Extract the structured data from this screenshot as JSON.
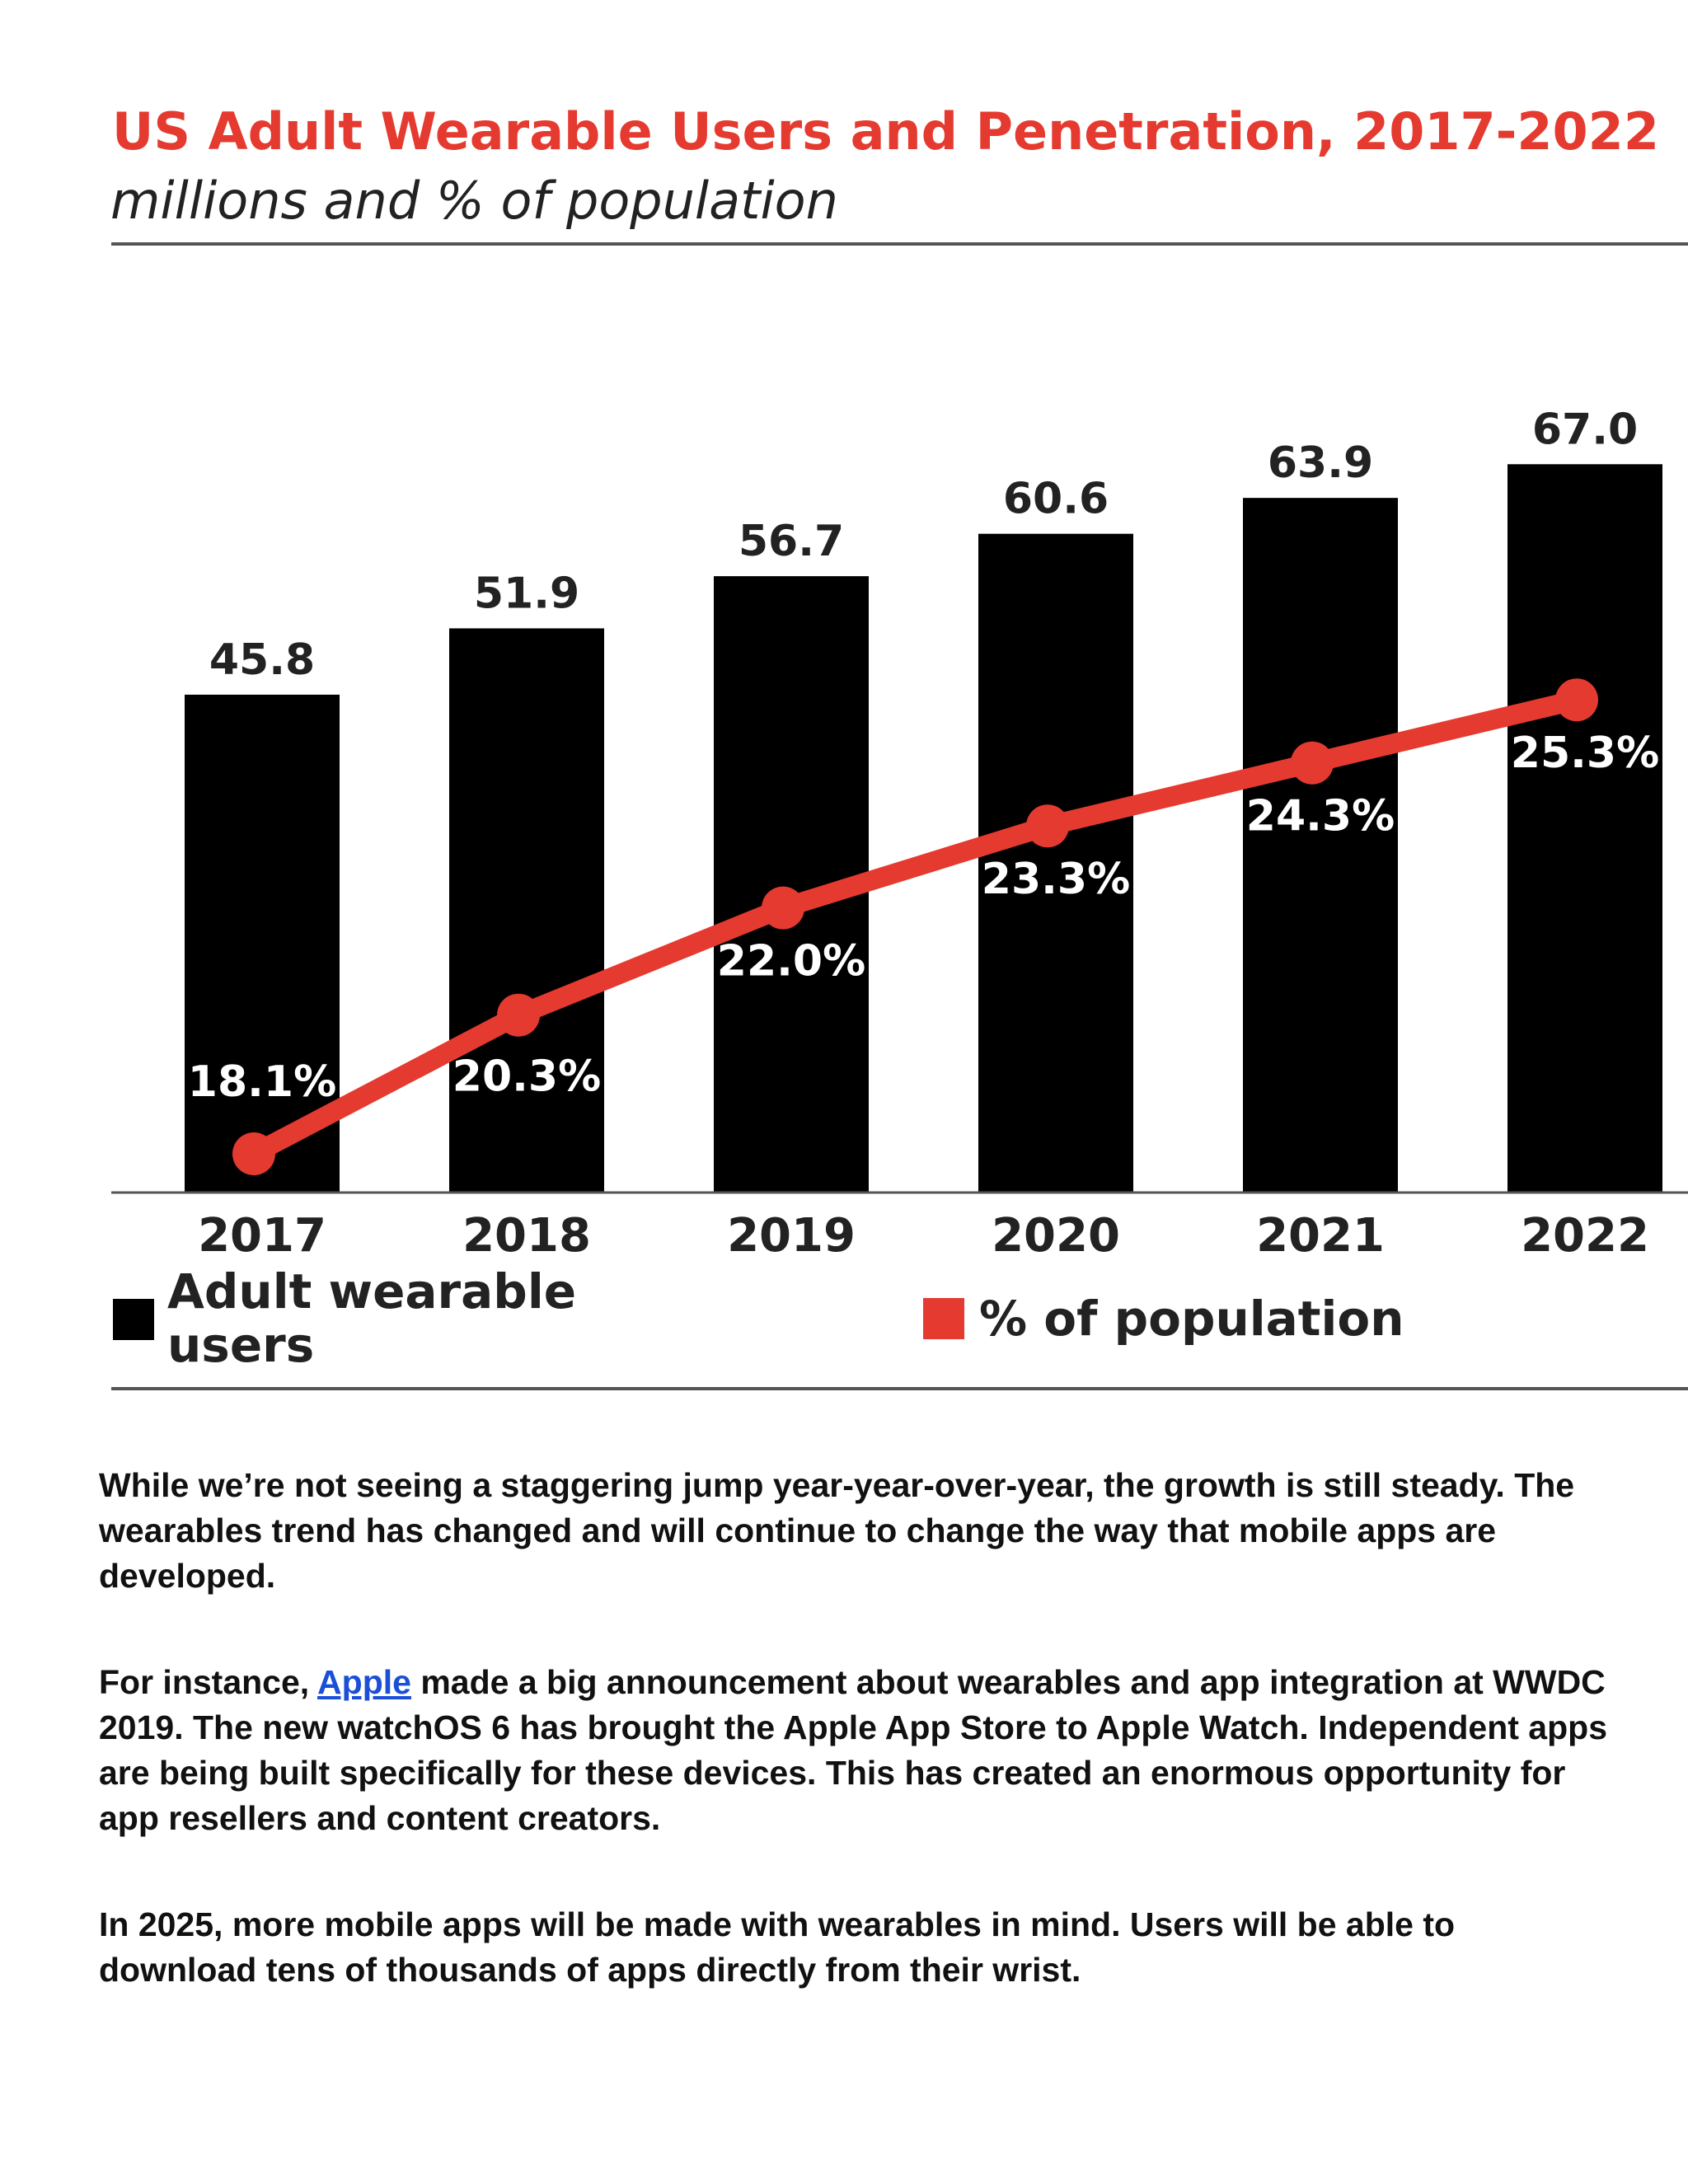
{
  "chart_data": {
    "type": "bar",
    "title": "US Adult Wearable Users and Penetration, 2017-2022",
    "subtitle": "millions and % of population",
    "categories": [
      "2017",
      "2018",
      "2019",
      "2020",
      "2021",
      "2022"
    ],
    "series": [
      {
        "name": "Adult wearable users",
        "type": "bar",
        "values": [
          45.8,
          51.9,
          56.7,
          60.6,
          63.9,
          67.0
        ],
        "labels": [
          "45.8",
          "51.9",
          "56.7",
          "60.6",
          "63.9",
          "67.0"
        ],
        "color": "#000000"
      },
      {
        "name": "% of population",
        "type": "line",
        "values": [
          18.1,
          20.3,
          22.0,
          23.3,
          24.3,
          25.3
        ],
        "labels": [
          "18.1%",
          "20.3%",
          "22.0%",
          "23.3%",
          "24.3%",
          "25.3%"
        ],
        "color": "#e53a2f"
      }
    ],
    "title_color": "#e53a2f",
    "legend": {
      "items": [
        "Adult wearable",
        "users",
        "% of population"
      ],
      "position": "bottom"
    },
    "grid": false
  },
  "article": {
    "p1": "While we’re not seeing a staggering jump year-year-over-year, the growth is still steady. The wearables trend has changed and will continue to change the way that mobile apps are developed.",
    "p2_before": "For instance, ",
    "p2_link": "Apple",
    "p2_after": " made a big announcement about wearables and app integration at WWDC 2019. The new watchOS 6 has brought the Apple App Store to Apple Watch. Independent apps are being built specifically for these devices. This has created an enormous opportunity for app resellers and content creators.",
    "p3": "In 2025, more mobile apps will be made with wearables in mind. Users will be able to download tens of thousands of apps directly from their wrist."
  }
}
